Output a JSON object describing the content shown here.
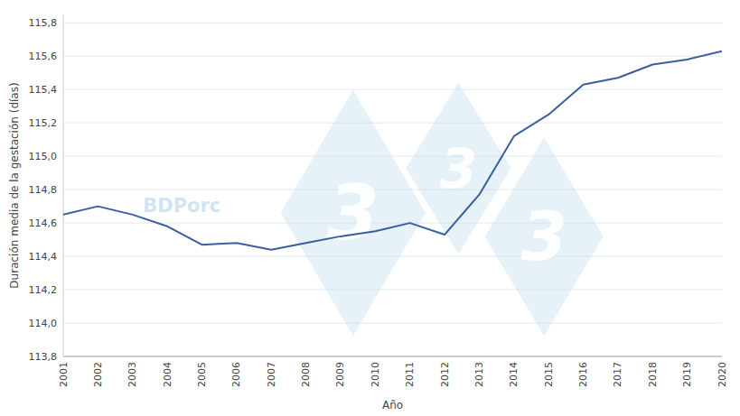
{
  "chart_data": {
    "type": "line",
    "x": [
      2001,
      2002,
      2003,
      2004,
      2005,
      2006,
      2007,
      2008,
      2009,
      2010,
      2011,
      2012,
      2013,
      2014,
      2015,
      2016,
      2017,
      2018,
      2019,
      2020
    ],
    "values": [
      114.65,
      114.7,
      114.65,
      114.58,
      114.47,
      114.48,
      114.44,
      114.48,
      114.52,
      114.55,
      114.6,
      114.53,
      114.77,
      115.12,
      115.25,
      115.43,
      115.47,
      115.55,
      115.58,
      115.63
    ],
    "color": "#3a5fa0",
    "xlabel": "Año",
    "ylabel": "Duración media de la gestación (días)",
    "xlim": [
      2001,
      2020
    ],
    "xticks": [
      2001,
      2002,
      2003,
      2004,
      2005,
      2006,
      2007,
      2008,
      2009,
      2010,
      2011,
      2012,
      2013,
      2014,
      2015,
      2016,
      2017,
      2018,
      2019,
      2020
    ],
    "ylim": [
      113.8,
      115.85
    ],
    "yticks": [
      {
        "value": 113.8,
        "label": "113,8"
      },
      {
        "value": 114.0,
        "label": "114,0"
      },
      {
        "value": 114.2,
        "label": "114,2"
      },
      {
        "value": 114.4,
        "label": "114,4"
      },
      {
        "value": 114.6,
        "label": "114,6"
      },
      {
        "value": 114.8,
        "label": "114,8"
      },
      {
        "value": 115.0,
        "label": "115,0"
      },
      {
        "value": 115.2,
        "label": "115,2"
      },
      {
        "value": 115.4,
        "label": "115,4"
      },
      {
        "value": 115.6,
        "label": "115,6"
      },
      {
        "value": 115.8,
        "label": "115,8"
      }
    ],
    "grid": true,
    "annotations": [
      "3",
      "3",
      "3",
      "BDPorc"
    ]
  }
}
